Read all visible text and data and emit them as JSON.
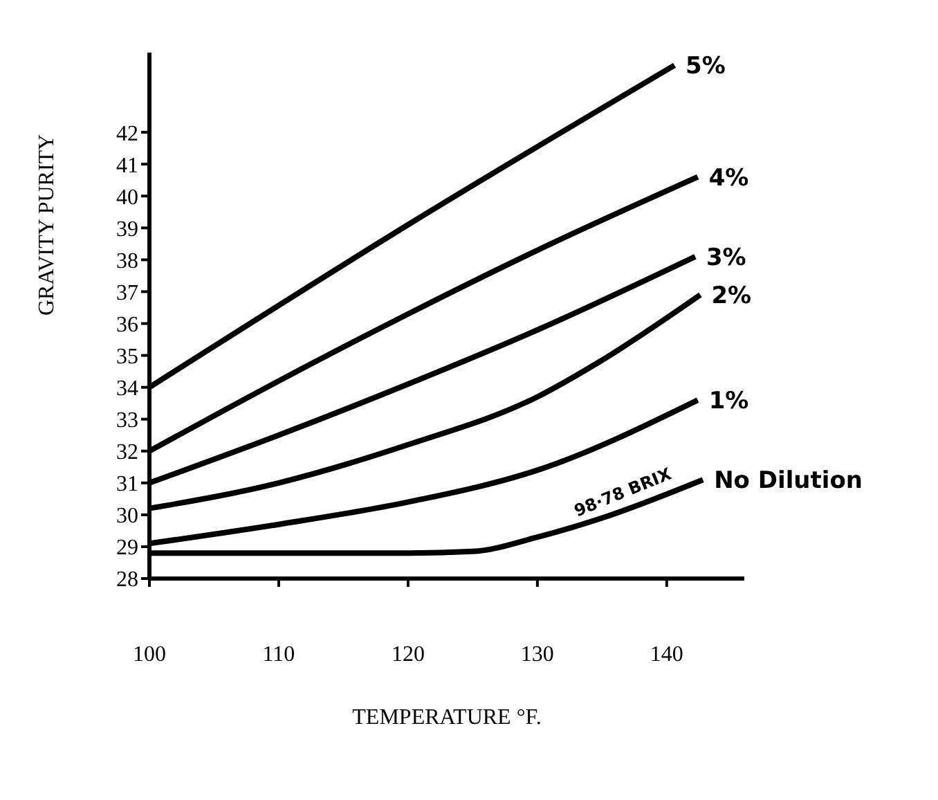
{
  "chart_data": {
    "type": "line",
    "xlabel": "TEMPERATURE °F.",
    "ylabel": "GRAVITY PURITY",
    "xlim": [
      100,
      146
    ],
    "xticks": [
      100,
      110,
      120,
      130,
      140
    ],
    "ylim": [
      28,
      44.5
    ],
    "yticks": [
      28,
      29,
      30,
      31,
      32,
      33,
      34,
      35,
      36,
      37,
      38,
      39,
      40,
      41,
      42
    ],
    "grid": false,
    "legend": false,
    "marker": "none",
    "line_style": "solid",
    "series": [
      {
        "name": "5%",
        "color": "#000000",
        "x": [
          100,
          120,
          140.6
        ],
        "values": [
          34,
          39.1,
          44.1
        ]
      },
      {
        "name": "4%",
        "color": "#000000",
        "x": [
          100,
          110,
          120,
          130,
          142.4
        ],
        "values": [
          32,
          34.2,
          36.3,
          38.3,
          40.6
        ]
      },
      {
        "name": "3%",
        "color": "#000000",
        "x": [
          100,
          110,
          120,
          130,
          142.2
        ],
        "values": [
          31,
          32.5,
          34.1,
          35.8,
          38.1
        ]
      },
      {
        "name": "2%",
        "color": "#000000",
        "x": [
          100,
          110,
          120,
          130,
          134.8,
          142.6
        ],
        "values": [
          30.2,
          31,
          32.2,
          33.7,
          34.8,
          36.9
        ]
      },
      {
        "name": "1%",
        "color": "#000000",
        "x": [
          100,
          110,
          120,
          130,
          142.4
        ],
        "values": [
          29.1,
          29.7,
          30.4,
          31.4,
          33.6
        ]
      },
      {
        "name": "No Dilution",
        "color": "#000000",
        "x": [
          100,
          110,
          120,
          125,
          130,
          135,
          142.8
        ],
        "values": [
          28.8,
          28.8,
          28.8,
          28.85,
          29.3,
          29.9,
          31.1
        ]
      }
    ],
    "annotations": [
      {
        "text": "98·78 BRIX",
        "x": 137,
        "y": 30.3
      }
    ]
  }
}
